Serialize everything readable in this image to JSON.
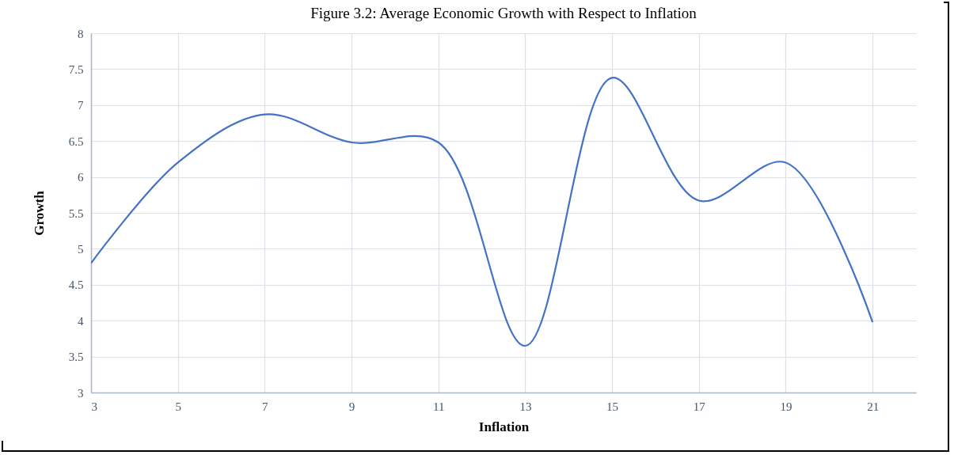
{
  "chart_data": {
    "type": "line",
    "title": "Figure 3.2: Average Economic Growth with Respect to Inflation",
    "xlabel": "Inflation",
    "ylabel": "Growth",
    "x": [
      3,
      5,
      7,
      9,
      11,
      13,
      15,
      17,
      19,
      21
    ],
    "series": [
      {
        "color": "#4472c4",
        "values": [
          4.8,
          6.2,
          6.87,
          6.48,
          6.48,
          3.65,
          7.38,
          5.67,
          6.2,
          3.98
        ]
      }
    ],
    "xlim": [
      3,
      22
    ],
    "xticks": [
      3,
      5,
      7,
      9,
      11,
      13,
      15,
      17,
      19,
      21
    ],
    "ylim": [
      3,
      8
    ],
    "yticks": [
      3,
      3.5,
      4,
      4.5,
      5,
      5.5,
      6,
      6.5,
      7,
      7.5,
      8
    ],
    "grid": true,
    "marker": "none",
    "line_style": "solid"
  }
}
